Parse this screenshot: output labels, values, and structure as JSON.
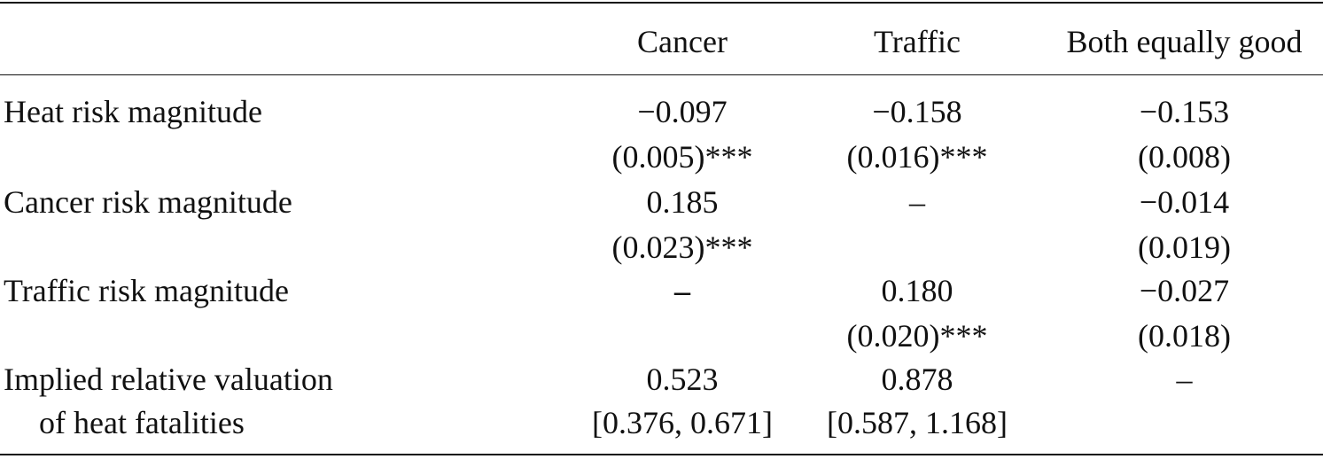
{
  "table": {
    "columns": [
      "Cancer",
      "Traffic",
      "Both equally good"
    ],
    "rows": [
      {
        "label": "Heat risk magnitude",
        "coef": [
          "−0.097",
          "−0.158",
          "−0.153"
        ],
        "se": [
          "(0.005)***",
          "(0.016)***",
          "(0.008)"
        ]
      },
      {
        "label": "Cancer risk magnitude",
        "coef": [
          "0.185",
          "–",
          "−0.014"
        ],
        "se": [
          "(0.023)***",
          "",
          "(0.019)"
        ]
      },
      {
        "label": "Traffic risk magnitude",
        "coef": [
          "–",
          "0.180",
          "−0.027"
        ],
        "se": [
          "",
          "(0.020)***",
          "(0.018)"
        ]
      },
      {
        "label_line1": "Implied relative valuation",
        "label_line2": "of heat fatalities",
        "coef": [
          "0.523",
          "0.878",
          "–"
        ],
        "ci": [
          "[0.376, 0.671]",
          "[0.587, 1.168]",
          ""
        ]
      }
    ]
  }
}
